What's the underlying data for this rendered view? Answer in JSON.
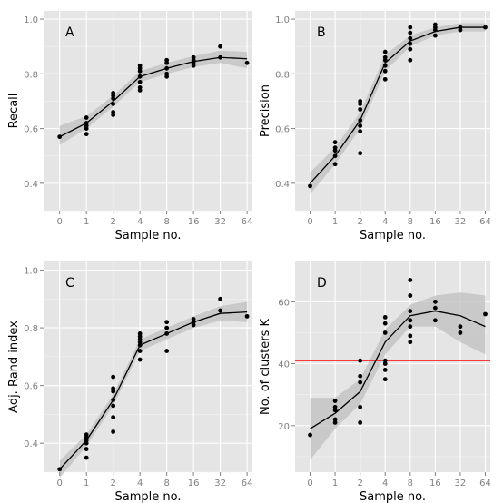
{
  "colors": {
    "panel_bg": "#e5e5e5",
    "grid_major": "#ffffff",
    "grid_minor": "#f2f2f2",
    "points": "#000000",
    "smooth_line": "#000000",
    "ribbon": "#bfbfbf",
    "reference_line": "#ff0000",
    "tick_text": "#7f7f7f",
    "axis_title": "#000000"
  },
  "chart_data": [
    {
      "type": "scatter",
      "panel_label": "A",
      "xlabel": "Sample no.",
      "ylabel": "Recall",
      "x_categories": [
        "0",
        "1",
        "2",
        "4",
        "8",
        "16",
        "32",
        "64"
      ],
      "ylim": [
        0.3,
        1.03
      ],
      "yticks": [
        0.4,
        0.6,
        0.8,
        1.0
      ],
      "ytick_labels": [
        "0.4",
        "0.6",
        "0.8",
        "1.0"
      ],
      "points": [
        [
          0,
          0.57
        ],
        [
          1,
          0.58
        ],
        [
          1,
          0.6
        ],
        [
          1,
          0.61
        ],
        [
          1,
          0.62
        ],
        [
          1,
          0.64
        ],
        [
          2,
          0.65
        ],
        [
          2,
          0.66
        ],
        [
          2,
          0.69
        ],
        [
          2,
          0.71
        ],
        [
          2,
          0.72
        ],
        [
          2,
          0.73
        ],
        [
          3,
          0.74
        ],
        [
          3,
          0.75
        ],
        [
          3,
          0.77
        ],
        [
          3,
          0.79
        ],
        [
          3,
          0.81
        ],
        [
          3,
          0.82
        ],
        [
          3,
          0.83
        ],
        [
          4,
          0.79
        ],
        [
          4,
          0.8
        ],
        [
          4,
          0.82
        ],
        [
          4,
          0.84
        ],
        [
          4,
          0.85
        ],
        [
          5,
          0.83
        ],
        [
          5,
          0.84
        ],
        [
          5,
          0.85
        ],
        [
          5,
          0.86
        ],
        [
          6,
          0.86
        ],
        [
          6,
          0.9
        ],
        [
          7,
          0.84
        ]
      ],
      "smooth": [
        [
          0,
          0.57
        ],
        [
          1,
          0.62
        ],
        [
          2,
          0.7
        ],
        [
          3,
          0.79
        ],
        [
          4,
          0.82
        ],
        [
          5,
          0.845
        ],
        [
          6,
          0.86
        ],
        [
          7,
          0.855
        ]
      ],
      "ribbon": [
        [
          0,
          0.54,
          0.61
        ],
        [
          1,
          0.6,
          0.645
        ],
        [
          2,
          0.68,
          0.72
        ],
        [
          3,
          0.77,
          0.81
        ],
        [
          4,
          0.8,
          0.84
        ],
        [
          5,
          0.825,
          0.865
        ],
        [
          6,
          0.84,
          0.885
        ],
        [
          7,
          0.82,
          0.88
        ]
      ],
      "grid": true
    },
    {
      "type": "scatter",
      "panel_label": "B",
      "xlabel": "Sample no.",
      "ylabel": "Precision",
      "x_categories": [
        "0",
        "1",
        "2",
        "4",
        "8",
        "16",
        "32",
        "64"
      ],
      "ylim": [
        0.3,
        1.03
      ],
      "yticks": [
        0.4,
        0.6,
        0.8,
        1.0
      ],
      "ytick_labels": [
        "0.4",
        "0.6",
        "0.8",
        "1.0"
      ],
      "points": [
        [
          0,
          0.39
        ],
        [
          1,
          0.47
        ],
        [
          1,
          0.5
        ],
        [
          1,
          0.52
        ],
        [
          1,
          0.53
        ],
        [
          1,
          0.55
        ],
        [
          2,
          0.51
        ],
        [
          2,
          0.59
        ],
        [
          2,
          0.61
        ],
        [
          2,
          0.63
        ],
        [
          2,
          0.67
        ],
        [
          2,
          0.69
        ],
        [
          2,
          0.7
        ],
        [
          3,
          0.78
        ],
        [
          3,
          0.81
        ],
        [
          3,
          0.83
        ],
        [
          3,
          0.85
        ],
        [
          3,
          0.86
        ],
        [
          3,
          0.88
        ],
        [
          4,
          0.85
        ],
        [
          4,
          0.89
        ],
        [
          4,
          0.91
        ],
        [
          4,
          0.93
        ],
        [
          4,
          0.95
        ],
        [
          4,
          0.97
        ],
        [
          5,
          0.94
        ],
        [
          5,
          0.96
        ],
        [
          5,
          0.97
        ],
        [
          5,
          0.98
        ],
        [
          6,
          0.96
        ],
        [
          6,
          0.97
        ],
        [
          7,
          0.97
        ]
      ],
      "smooth": [
        [
          0,
          0.4
        ],
        [
          1,
          0.5
        ],
        [
          2,
          0.63
        ],
        [
          3,
          0.84
        ],
        [
          4,
          0.92
        ],
        [
          5,
          0.955
        ],
        [
          6,
          0.97
        ],
        [
          7,
          0.97
        ]
      ],
      "ribbon": [
        [
          0,
          0.36,
          0.44
        ],
        [
          1,
          0.47,
          0.53
        ],
        [
          2,
          0.6,
          0.66
        ],
        [
          3,
          0.81,
          0.87
        ],
        [
          4,
          0.9,
          0.94
        ],
        [
          5,
          0.94,
          0.97
        ],
        [
          6,
          0.955,
          0.985
        ],
        [
          7,
          0.955,
          0.985
        ]
      ],
      "grid": true
    },
    {
      "type": "scatter",
      "panel_label": "C",
      "xlabel": "Sample no.",
      "ylabel": "Adj. Rand index",
      "x_categories": [
        "0",
        "1",
        "2",
        "4",
        "8",
        "16",
        "32",
        "64"
      ],
      "ylim": [
        0.3,
        1.03
      ],
      "yticks": [
        0.4,
        0.6,
        0.8,
        1.0
      ],
      "ytick_labels": [
        "0.4",
        "0.6",
        "0.8",
        "1.0"
      ],
      "points": [
        [
          0,
          0.31
        ],
        [
          1,
          0.35
        ],
        [
          1,
          0.38
        ],
        [
          1,
          0.4
        ],
        [
          1,
          0.41
        ],
        [
          1,
          0.42
        ],
        [
          1,
          0.43
        ],
        [
          2,
          0.44
        ],
        [
          2,
          0.49
        ],
        [
          2,
          0.53
        ],
        [
          2,
          0.55
        ],
        [
          2,
          0.58
        ],
        [
          2,
          0.59
        ],
        [
          2,
          0.63
        ],
        [
          3,
          0.69
        ],
        [
          3,
          0.72
        ],
        [
          3,
          0.74
        ],
        [
          3,
          0.75
        ],
        [
          3,
          0.76
        ],
        [
          3,
          0.77
        ],
        [
          3,
          0.78
        ],
        [
          4,
          0.72
        ],
        [
          4,
          0.78
        ],
        [
          4,
          0.8
        ],
        [
          4,
          0.82
        ],
        [
          5,
          0.81
        ],
        [
          5,
          0.82
        ],
        [
          5,
          0.83
        ],
        [
          6,
          0.86
        ],
        [
          6,
          0.9
        ],
        [
          7,
          0.84
        ]
      ],
      "smooth": [
        [
          0,
          0.31
        ],
        [
          1,
          0.41
        ],
        [
          2,
          0.55
        ],
        [
          3,
          0.74
        ],
        [
          4,
          0.78
        ],
        [
          5,
          0.82
        ],
        [
          6,
          0.85
        ],
        [
          7,
          0.855
        ]
      ],
      "ribbon": [
        [
          0,
          0.28,
          0.34
        ],
        [
          1,
          0.39,
          0.43
        ],
        [
          2,
          0.53,
          0.57
        ],
        [
          3,
          0.72,
          0.76
        ],
        [
          4,
          0.76,
          0.8
        ],
        [
          5,
          0.8,
          0.84
        ],
        [
          6,
          0.825,
          0.875
        ],
        [
          7,
          0.82,
          0.89
        ]
      ],
      "grid": true
    },
    {
      "type": "scatter",
      "panel_label": "D",
      "xlabel": "Sample no.",
      "ylabel": "No. of clusters K",
      "x_categories": [
        "0",
        "1",
        "2",
        "4",
        "8",
        "16",
        "32",
        "64"
      ],
      "ylim": [
        5,
        73
      ],
      "yticks": [
        20,
        40,
        60
      ],
      "ytick_labels": [
        "20",
        "40",
        "60"
      ],
      "reference_line": 41,
      "points": [
        [
          0,
          17
        ],
        [
          1,
          21
        ],
        [
          1,
          22
        ],
        [
          1,
          25
        ],
        [
          1,
          26
        ],
        [
          1,
          28
        ],
        [
          2,
          21
        ],
        [
          2,
          26
        ],
        [
          2,
          34
        ],
        [
          2,
          36
        ],
        [
          2,
          41
        ],
        [
          3,
          35
        ],
        [
          3,
          38
        ],
        [
          3,
          40
        ],
        [
          3,
          41
        ],
        [
          3,
          50
        ],
        [
          3,
          53
        ],
        [
          3,
          55
        ],
        [
          4,
          47
        ],
        [
          4,
          49
        ],
        [
          4,
          52
        ],
        [
          4,
          54
        ],
        [
          4,
          57
        ],
        [
          4,
          62
        ],
        [
          4,
          67
        ],
        [
          5,
          54
        ],
        [
          5,
          58
        ],
        [
          5,
          60
        ],
        [
          6,
          50
        ],
        [
          6,
          52
        ],
        [
          7,
          56
        ]
      ],
      "smooth": [
        [
          0,
          19
        ],
        [
          1,
          24
        ],
        [
          2,
          31
        ],
        [
          3,
          47
        ],
        [
          4,
          55.5
        ],
        [
          5,
          57
        ],
        [
          6,
          55.5
        ],
        [
          7,
          52
        ]
      ],
      "ribbon": [
        [
          0,
          9,
          29
        ],
        [
          1,
          19,
          29
        ],
        [
          2,
          27,
          35
        ],
        [
          3,
          43,
          51
        ],
        [
          4,
          52,
          59
        ],
        [
          5,
          52,
          62
        ],
        [
          6,
          47,
          63
        ],
        [
          7,
          43,
          62
        ]
      ],
      "grid": true
    }
  ]
}
